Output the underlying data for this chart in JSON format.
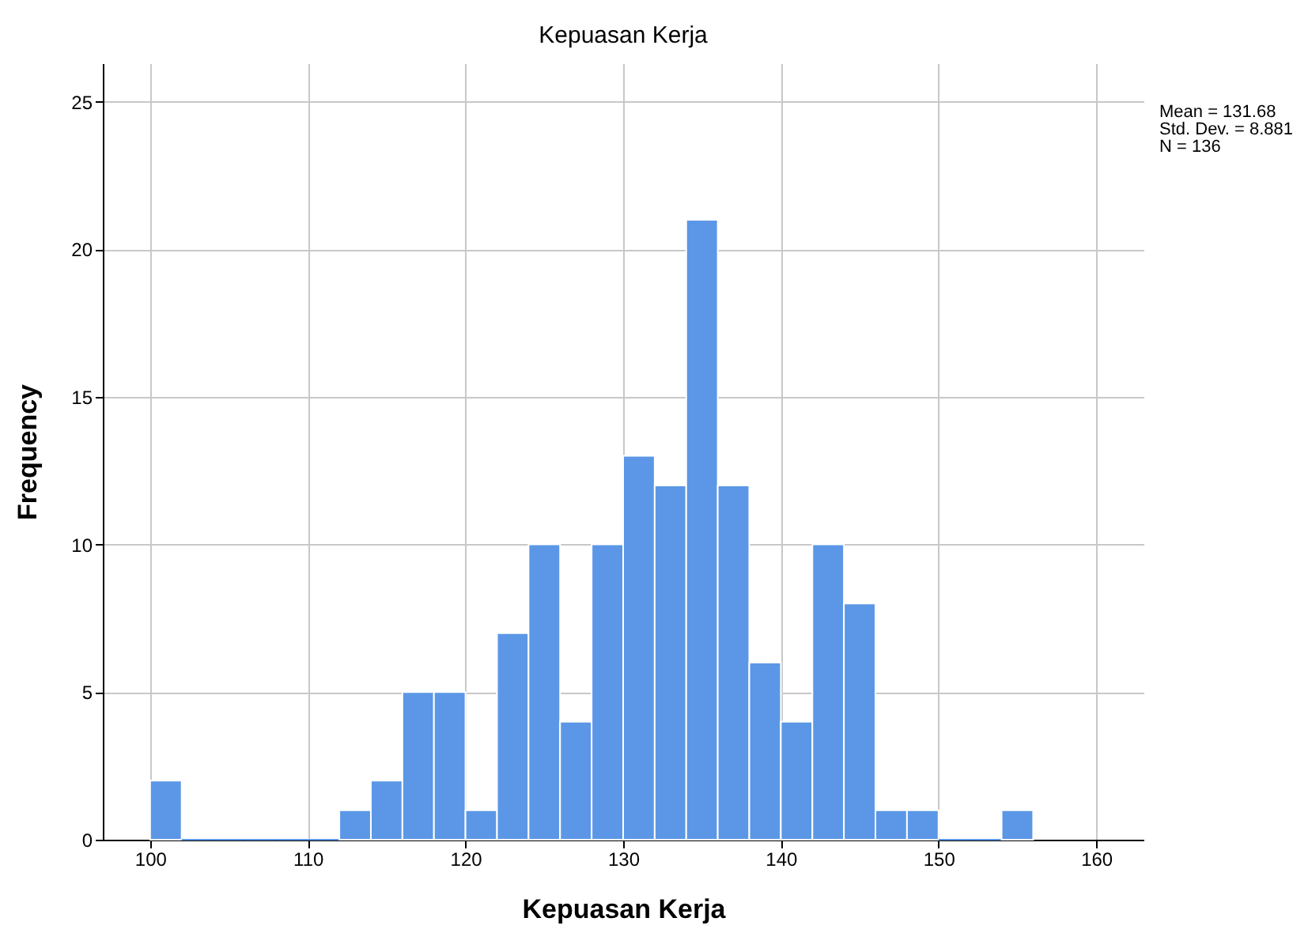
{
  "chart_data": {
    "type": "histogram",
    "title": "Kepuasan Kerja",
    "xlabel": "Kepuasan Kerja",
    "ylabel": "Frequency",
    "bins": [
      100,
      102,
      104,
      106,
      108,
      110,
      112,
      114,
      116,
      118,
      120,
      122,
      124,
      126,
      128,
      130,
      132,
      134,
      136,
      138,
      140,
      142,
      144,
      146,
      148,
      150,
      152,
      154,
      156
    ],
    "values": [
      2,
      0,
      0,
      0,
      0,
      0,
      1,
      2,
      5,
      5,
      1,
      7,
      10,
      4,
      10,
      13,
      12,
      21,
      12,
      6,
      4,
      10,
      8,
      1,
      1,
      0,
      0,
      1
    ],
    "color": "#5b97e6",
    "xlim": [
      97,
      163
    ],
    "xticks": [
      100,
      110,
      120,
      130,
      140,
      150,
      160
    ],
    "ylim": [
      0,
      26.3
    ],
    "yticks": [
      0,
      5,
      10,
      15,
      20,
      25
    ],
    "grid": true,
    "annotations": [
      "Mean = 131.68",
      "Std. Dev. = 8.881",
      "N = 136"
    ]
  }
}
